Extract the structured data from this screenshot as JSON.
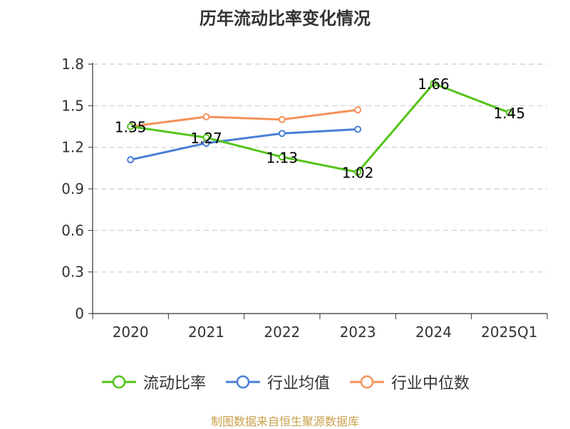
{
  "chart_data": {
    "type": "line",
    "title": "历年流动比率变化情况",
    "categories": [
      "2020",
      "2021",
      "2022",
      "2023",
      "2024",
      "2025Q1"
    ],
    "ylim": [
      0,
      1.8
    ],
    "yticks": [
      "0",
      "0.3",
      "0.6",
      "0.9",
      "1.2",
      "1.5",
      "1.8"
    ],
    "grid": true,
    "legend_position": "bottom",
    "series": [
      {
        "name": "流动比率",
        "color": "#52c41a",
        "values": [
          1.35,
          1.27,
          1.13,
          1.02,
          1.66,
          1.45
        ],
        "labels": [
          "1.35",
          "1.27",
          "1.13",
          "1.02",
          "1.66",
          "1.45"
        ]
      },
      {
        "name": "行业均值",
        "color": "#4a7fd6",
        "values": [
          1.11,
          1.23,
          1.3,
          1.33,
          null,
          null
        ]
      },
      {
        "name": "行业中位数",
        "color": "#f5925a",
        "values": [
          1.35,
          1.42,
          1.4,
          1.47,
          null,
          null
        ]
      }
    ]
  },
  "footer": {
    "source": "制图数据来自恒生聚源数据库"
  }
}
